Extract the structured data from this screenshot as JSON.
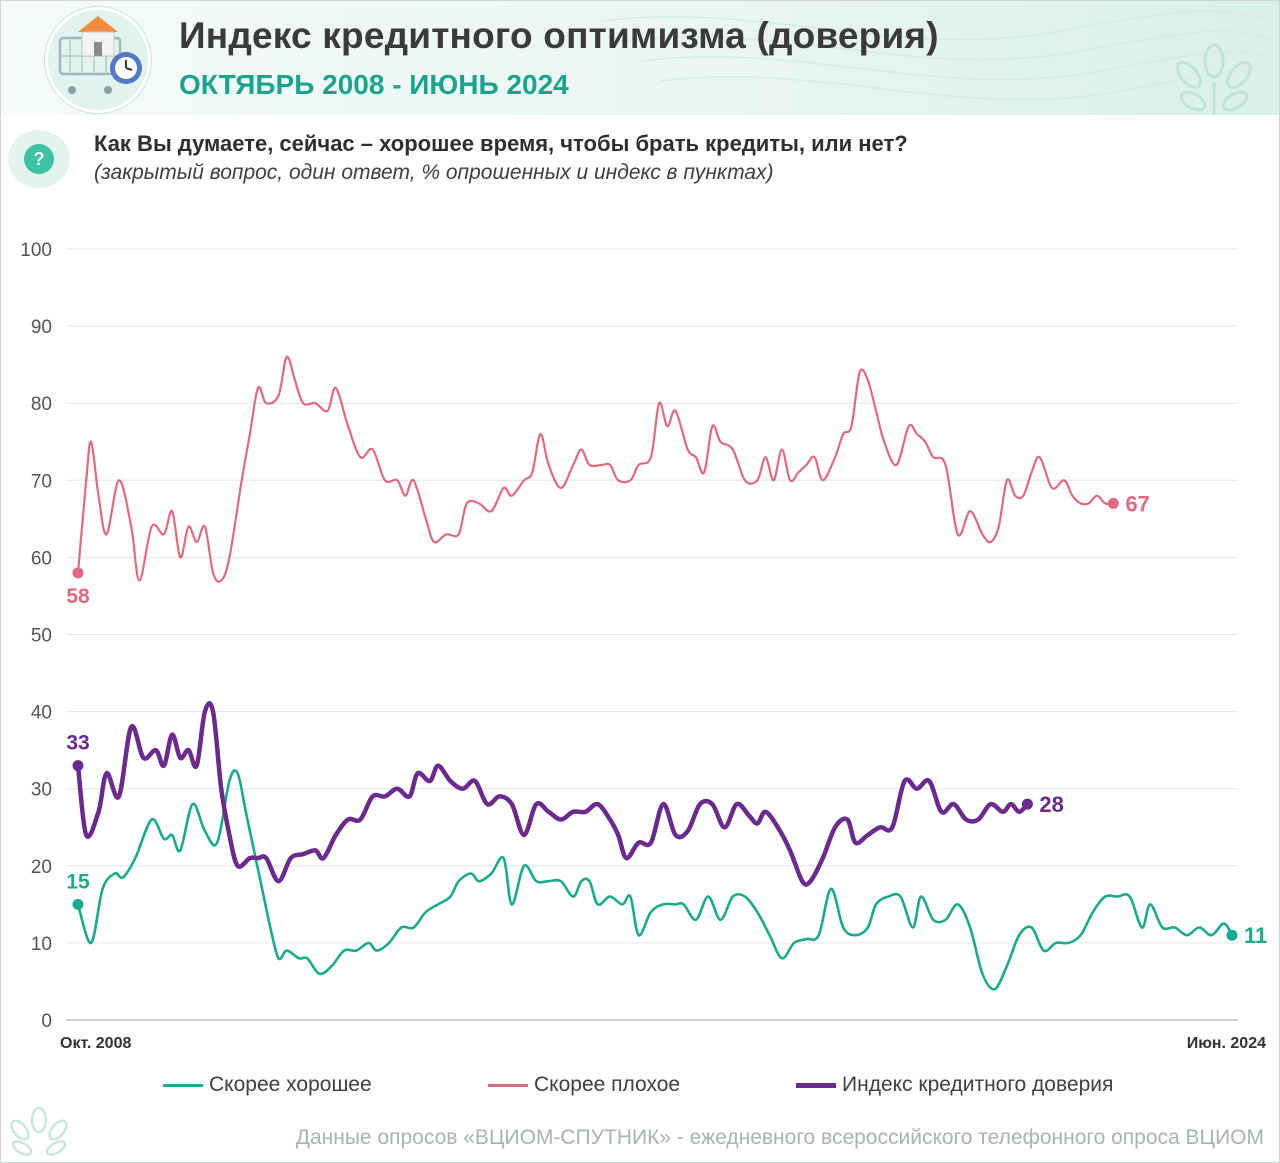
{
  "header": {
    "title": "Индекс кредитного оптимизма (доверия)",
    "subtitle": "ОКТЯБРЬ 2008 - ИЮНЬ 2024"
  },
  "question": {
    "badge": "?",
    "text": "Как Вы думаете, сейчас – хорошее время, чтобы брать кредиты, или нет?",
    "note": "(закрытый вопрос, один ответ, % опрошенных и индекс в пунктах)"
  },
  "colors": {
    "good": "#1aab8d",
    "bad": "#e06b7f",
    "index": "#6a2a8e",
    "grid": "#e6e6e6",
    "axis": "#cfcfcf",
    "tick": "#555555"
  },
  "chart_data": {
    "type": "line",
    "title": "Индекс кредитного оптимизма (доверия)",
    "x_start_label": "Окт. 2008",
    "x_end_label": "Июн. 2024",
    "ylim": [
      0,
      100
    ],
    "yticks": [
      0,
      10,
      20,
      30,
      40,
      50,
      60,
      70,
      80,
      90,
      100
    ],
    "grid": true,
    "legend_position": "bottom",
    "series": [
      {
        "name": "Скорее хорошее",
        "color_key": "good",
        "start_label": "15",
        "end_label": "11",
        "points": [
          [
            0,
            15
          ],
          [
            1.6,
            10
          ],
          [
            3,
            17
          ],
          [
            4.5,
            19
          ],
          [
            5.5,
            18.5
          ],
          [
            7,
            21
          ],
          [
            9,
            26
          ],
          [
            10.5,
            23.5
          ],
          [
            11.5,
            24
          ],
          [
            12.5,
            22
          ],
          [
            14,
            28
          ],
          [
            15.5,
            24.5
          ],
          [
            17,
            23
          ],
          [
            18.5,
            31
          ],
          [
            19.5,
            32
          ],
          [
            20.5,
            27
          ],
          [
            21.5,
            22
          ],
          [
            22.5,
            17
          ],
          [
            23.5,
            12
          ],
          [
            24.5,
            8
          ],
          [
            25.5,
            9
          ],
          [
            27,
            8
          ],
          [
            28,
            8
          ],
          [
            29.5,
            6
          ],
          [
            31,
            7
          ],
          [
            32.5,
            9
          ],
          [
            34,
            9
          ],
          [
            35.5,
            10
          ],
          [
            36.5,
            9
          ],
          [
            38,
            10
          ],
          [
            39.5,
            12
          ],
          [
            41,
            12
          ],
          [
            42.5,
            14
          ],
          [
            44,
            15
          ],
          [
            45.5,
            16
          ],
          [
            46.5,
            18
          ],
          [
            48,
            19
          ],
          [
            49,
            18
          ],
          [
            50.5,
            19
          ],
          [
            52,
            21
          ],
          [
            53,
            15
          ],
          [
            54.5,
            20
          ],
          [
            56,
            18
          ],
          [
            57.5,
            18
          ],
          [
            59,
            18
          ],
          [
            60.5,
            16
          ],
          [
            61.5,
            18
          ],
          [
            62.5,
            18
          ],
          [
            63.5,
            15
          ],
          [
            65,
            16
          ],
          [
            66.5,
            15
          ],
          [
            67.5,
            16
          ],
          [
            68.5,
            11
          ],
          [
            70,
            14
          ],
          [
            71.5,
            15
          ],
          [
            73,
            15
          ],
          [
            74,
            15
          ],
          [
            75.5,
            13
          ],
          [
            77,
            16
          ],
          [
            78.5,
            13
          ],
          [
            80,
            16
          ],
          [
            81.5,
            16
          ],
          [
            83,
            14
          ],
          [
            84.5,
            11
          ],
          [
            86,
            8
          ],
          [
            87.5,
            10
          ],
          [
            89,
            10.5
          ],
          [
            90.5,
            11
          ],
          [
            92,
            17
          ],
          [
            93.5,
            12
          ],
          [
            95,
            11
          ],
          [
            96.5,
            12
          ],
          [
            97.5,
            15
          ],
          [
            99,
            16
          ],
          [
            100.5,
            16
          ],
          [
            102,
            12
          ],
          [
            103,
            16
          ],
          [
            104.5,
            13
          ],
          [
            106,
            13
          ],
          [
            107.5,
            15
          ],
          [
            109,
            12
          ],
          [
            110.5,
            6
          ],
          [
            112,
            4
          ],
          [
            113.5,
            7
          ],
          [
            115,
            11
          ],
          [
            116.5,
            12
          ],
          [
            118,
            9
          ],
          [
            119.5,
            10
          ],
          [
            121,
            10
          ],
          [
            122.5,
            11
          ],
          [
            124,
            14
          ],
          [
            125.5,
            16
          ],
          [
            127,
            16
          ],
          [
            128.5,
            16
          ],
          [
            130,
            12
          ],
          [
            131,
            15
          ],
          [
            132.5,
            12
          ],
          [
            134,
            12
          ],
          [
            135.5,
            11
          ],
          [
            137,
            12
          ],
          [
            138.5,
            11
          ],
          [
            140,
            12.5
          ],
          [
            141,
            11
          ]
        ]
      },
      {
        "name": "Скорее плохое",
        "color_key": "bad",
        "start_label": "58",
        "end_label": "67",
        "points": [
          [
            0,
            58
          ],
          [
            1,
            70
          ],
          [
            1.6,
            75
          ],
          [
            2.5,
            68
          ],
          [
            3.5,
            63
          ],
          [
            5,
            70
          ],
          [
            6.5,
            64
          ],
          [
            7.5,
            57
          ],
          [
            9,
            64
          ],
          [
            10.5,
            63
          ],
          [
            11.5,
            66
          ],
          [
            12.5,
            60
          ],
          [
            13.5,
            64
          ],
          [
            14.5,
            62
          ],
          [
            15.5,
            64
          ],
          [
            16.5,
            58
          ],
          [
            17.5,
            57
          ],
          [
            18.5,
            60
          ],
          [
            20,
            70
          ],
          [
            21,
            76
          ],
          [
            22,
            82
          ],
          [
            23,
            80
          ],
          [
            24.5,
            81
          ],
          [
            25.5,
            86
          ],
          [
            26.5,
            83
          ],
          [
            27.5,
            80
          ],
          [
            29,
            80
          ],
          [
            30.5,
            79
          ],
          [
            31.5,
            82
          ],
          [
            33,
            77
          ],
          [
            34.5,
            73
          ],
          [
            36,
            74
          ],
          [
            37.5,
            70
          ],
          [
            39,
            70
          ],
          [
            40,
            68
          ],
          [
            41,
            70
          ],
          [
            42.5,
            65
          ],
          [
            43.5,
            62
          ],
          [
            45,
            63
          ],
          [
            46.5,
            63
          ],
          [
            47.5,
            67
          ],
          [
            49,
            67
          ],
          [
            50.5,
            66
          ],
          [
            52,
            69
          ],
          [
            53,
            68
          ],
          [
            54.5,
            70
          ],
          [
            55.5,
            71
          ],
          [
            56.5,
            76
          ],
          [
            57.5,
            72
          ],
          [
            59,
            69
          ],
          [
            60.5,
            72
          ],
          [
            61.5,
            74
          ],
          [
            62.5,
            72
          ],
          [
            64,
            72
          ],
          [
            65,
            72
          ],
          [
            66,
            70
          ],
          [
            67.5,
            70
          ],
          [
            68.5,
            72
          ],
          [
            70,
            73
          ],
          [
            71,
            80
          ],
          [
            72,
            77
          ],
          [
            73,
            79
          ],
          [
            74.5,
            74
          ],
          [
            75.5,
            73
          ],
          [
            76.5,
            71
          ],
          [
            77.5,
            77
          ],
          [
            78.5,
            75
          ],
          [
            80,
            74
          ],
          [
            81.5,
            70
          ],
          [
            83,
            70
          ],
          [
            84,
            73
          ],
          [
            85,
            70
          ],
          [
            86,
            74
          ],
          [
            87,
            70
          ],
          [
            88,
            71
          ],
          [
            89,
            72
          ],
          [
            90,
            73
          ],
          [
            91,
            70
          ],
          [
            92.5,
            73
          ],
          [
            93.5,
            76
          ],
          [
            94.5,
            77
          ],
          [
            95.5,
            84
          ],
          [
            96.5,
            83
          ],
          [
            97.5,
            79
          ],
          [
            98.5,
            75
          ],
          [
            100,
            72
          ],
          [
            101.5,
            77
          ],
          [
            102.5,
            76
          ],
          [
            103.5,
            75
          ],
          [
            104.5,
            73
          ],
          [
            106,
            72
          ],
          [
            107.5,
            63
          ],
          [
            109,
            66
          ],
          [
            110.5,
            63
          ],
          [
            111.5,
            62
          ],
          [
            112.5,
            64
          ],
          [
            113.5,
            70
          ],
          [
            114.5,
            68
          ],
          [
            115.5,
            68
          ],
          [
            116.5,
            71
          ],
          [
            117.5,
            73
          ],
          [
            119,
            69
          ],
          [
            120.5,
            70
          ],
          [
            121.5,
            68
          ],
          [
            122.5,
            67
          ],
          [
            123.5,
            67
          ],
          [
            124.5,
            68
          ],
          [
            125.5,
            67
          ],
          [
            126.5,
            67
          ]
        ]
      },
      {
        "name": "Индекс кредитного доверия",
        "color_key": "index",
        "start_label": "33",
        "end_label": "28",
        "points": [
          [
            0,
            33
          ],
          [
            1,
            24
          ],
          [
            2.5,
            27
          ],
          [
            3.5,
            32
          ],
          [
            5,
            29
          ],
          [
            6.5,
            38
          ],
          [
            8,
            34
          ],
          [
            9.5,
            35
          ],
          [
            10.5,
            33
          ],
          [
            11.5,
            37
          ],
          [
            12.5,
            34
          ],
          [
            13.5,
            35
          ],
          [
            14.5,
            33
          ],
          [
            15.5,
            40
          ],
          [
            16.5,
            40
          ],
          [
            17.5,
            30
          ],
          [
            18.5,
            24
          ],
          [
            19.5,
            20
          ],
          [
            21,
            21
          ],
          [
            22,
            21
          ],
          [
            23,
            21
          ],
          [
            24.5,
            18
          ],
          [
            26,
            21
          ],
          [
            27.5,
            21.5
          ],
          [
            29,
            22
          ],
          [
            30,
            21
          ],
          [
            31.5,
            24
          ],
          [
            33,
            26
          ],
          [
            34.5,
            26
          ],
          [
            36,
            29
          ],
          [
            37.5,
            29
          ],
          [
            39,
            30
          ],
          [
            40.5,
            29
          ],
          [
            41.5,
            32
          ],
          [
            43,
            31
          ],
          [
            44,
            33
          ],
          [
            45.5,
            31
          ],
          [
            47,
            30
          ],
          [
            48.5,
            31
          ],
          [
            50,
            28
          ],
          [
            51.5,
            29
          ],
          [
            53,
            28
          ],
          [
            54.5,
            24
          ],
          [
            56,
            28
          ],
          [
            57.5,
            27
          ],
          [
            59,
            26
          ],
          [
            60.5,
            27
          ],
          [
            62,
            27
          ],
          [
            63.5,
            28
          ],
          [
            65,
            26
          ],
          [
            66,
            24
          ],
          [
            67,
            21
          ],
          [
            68.5,
            23
          ],
          [
            70,
            23
          ],
          [
            71.5,
            28
          ],
          [
            73,
            24
          ],
          [
            74.5,
            24.5
          ],
          [
            76,
            28
          ],
          [
            77.5,
            28
          ],
          [
            79,
            25
          ],
          [
            80.5,
            28
          ],
          [
            82,
            26.5
          ],
          [
            83,
            25.5
          ],
          [
            84,
            27
          ],
          [
            85.5,
            25
          ],
          [
            87,
            22
          ],
          [
            88.5,
            18
          ],
          [
            89.5,
            18
          ],
          [
            91,
            21
          ],
          [
            92.5,
            25
          ],
          [
            94,
            26
          ],
          [
            95,
            23
          ],
          [
            96.5,
            24
          ],
          [
            98,
            25
          ],
          [
            99.5,
            25
          ],
          [
            101,
            31
          ],
          [
            102.5,
            30
          ],
          [
            104,
            31
          ],
          [
            105.5,
            27
          ],
          [
            107,
            28
          ],
          [
            108.5,
            26
          ],
          [
            110,
            26
          ],
          [
            111.5,
            28
          ],
          [
            113,
            27
          ],
          [
            114,
            28
          ],
          [
            115,
            27
          ],
          [
            116,
            28
          ]
        ]
      }
    ]
  },
  "legend": {
    "items": [
      "Скорее хорошее",
      "Скорее плохое",
      "Индекс кредитного доверия"
    ]
  },
  "footer": {
    "text": "Данные опросов «ВЦИОМ-СПУТНИК» - ежедневного всероссийского телефонного опроса ВЦИОМ"
  }
}
